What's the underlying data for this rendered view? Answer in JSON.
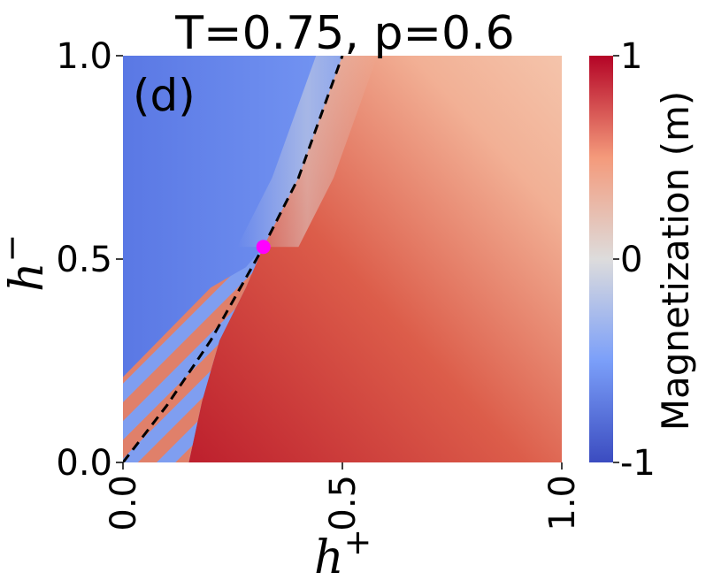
{
  "chart_data": {
    "type": "heatmap",
    "title": "T=0.75, p=0.6",
    "panel_label": "(d)",
    "xlabel": "h",
    "xlabel_sup": "+",
    "ylabel": "h",
    "ylabel_sup": "−",
    "xlim": [
      0.0,
      1.0
    ],
    "ylim": [
      0.0,
      1.0
    ],
    "x_ticks": [
      {
        "value": 0.0,
        "label": "0.0"
      },
      {
        "value": 0.5,
        "label": "0.5"
      },
      {
        "value": 1.0,
        "label": "1.0"
      }
    ],
    "y_ticks": [
      {
        "value": 0.0,
        "label": "0.0"
      },
      {
        "value": 0.5,
        "label": "0.5"
      },
      {
        "value": 1.0,
        "label": "1.0"
      }
    ],
    "colorbar": {
      "label": "Magnetization (m)",
      "range": [
        -1,
        1
      ],
      "colormap": "coolwarm",
      "ticks": [
        {
          "value": 1,
          "label": "1"
        },
        {
          "value": 0,
          "label": "0"
        },
        {
          "value": -1,
          "label": "-1"
        }
      ]
    },
    "critical_point": {
      "x": 0.32,
      "y": 0.53,
      "color": "#ff00ff"
    },
    "transition_line": {
      "style": "dashed",
      "color": "#000000",
      "points": [
        [
          0.0,
          0.0
        ],
        [
          0.1,
          0.14
        ],
        [
          0.2,
          0.3
        ],
        [
          0.32,
          0.53
        ],
        [
          0.4,
          0.7
        ],
        [
          0.5,
          1.0
        ]
      ]
    },
    "coexistence_region": {
      "pattern": "hatched-red-blue",
      "boundary": [
        [
          0.0,
          0.0
        ],
        [
          0.0,
          0.21
        ],
        [
          0.1,
          0.32
        ],
        [
          0.2,
          0.43
        ],
        [
          0.28,
          0.48
        ],
        [
          0.32,
          0.53
        ],
        [
          0.28,
          0.43
        ],
        [
          0.22,
          0.3
        ],
        [
          0.18,
          0.15
        ],
        [
          0.15,
          0.0
        ]
      ]
    }
  }
}
